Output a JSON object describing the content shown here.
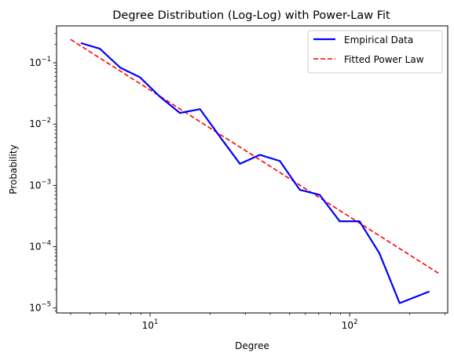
{
  "chart_data": {
    "type": "line",
    "title": "Degree Distribution (Log-Log) with Power-Law Fit",
    "xlabel": "Degree",
    "ylabel": "Probability",
    "xscale": "log",
    "yscale": "log",
    "xlim": [
      3.4,
      310
    ],
    "ylim": [
      8.3e-06,
      0.4
    ],
    "x_ticks": [
      10,
      100
    ],
    "y_ticks": [
      1e-05,
      0.0001,
      0.001,
      0.01,
      0.1
    ],
    "grid": false,
    "legend": {
      "position": "top-right"
    },
    "series": [
      {
        "name": "Empirical Data",
        "color": "#0000ff",
        "style": "solid",
        "x": [
          4.5,
          5.6,
          7.1,
          8.9,
          11.2,
          14.1,
          17.8,
          22.4,
          28.2,
          35.5,
          44.7,
          56.2,
          70.8,
          89.1,
          112,
          141,
          178,
          251
        ],
        "y": [
          0.21,
          0.17,
          0.083,
          0.058,
          0.028,
          0.0152,
          0.0175,
          0.0062,
          0.00225,
          0.00315,
          0.0025,
          0.00085,
          0.0007,
          0.00026,
          0.00026,
          7.8e-05,
          1.2e-05,
          1.86e-05
        ]
      },
      {
        "name": "Fitted Power Law",
        "color": "#ff0000",
        "style": "dashed",
        "x": [
          4,
          280
        ],
        "y": [
          0.24,
          3.65e-05
        ]
      }
    ]
  }
}
